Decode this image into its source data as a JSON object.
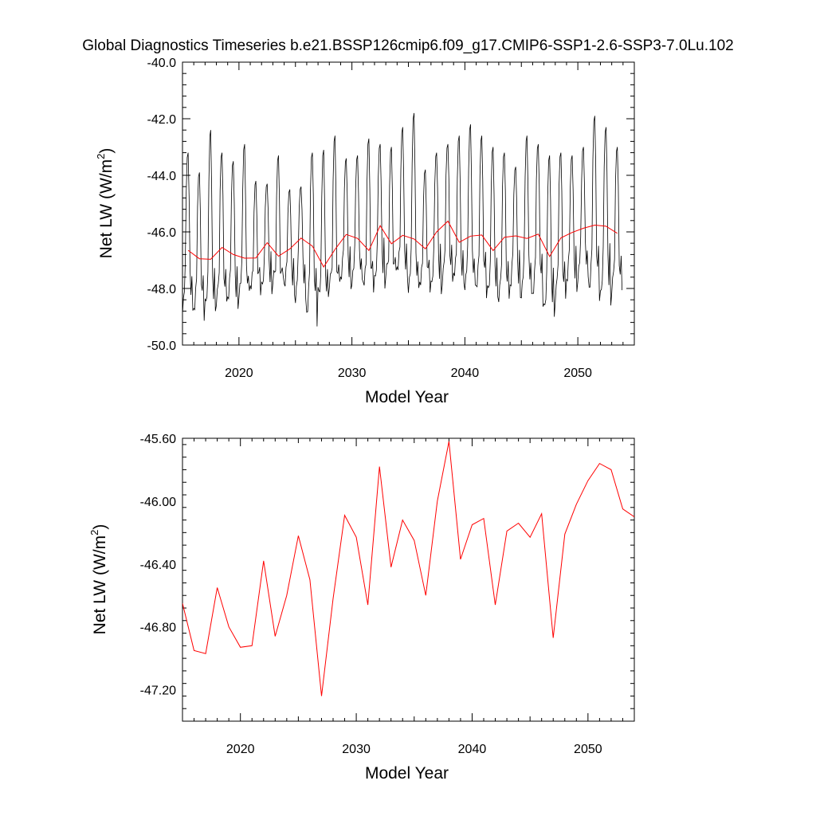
{
  "title": "Global Diagnostics Timeseries b.e21.BSSP126cmip6.f09_g17.CMIP6-SSP1-2.6-SSP3-7.0Lu.102",
  "colors": {
    "monthly": "#000000",
    "annual": "#ff0000"
  },
  "chart_data": [
    {
      "type": "line",
      "xlabel": "Model Year",
      "ylabel": "Net LW (W/m",
      "ylabel_sup": "2",
      "ylabel_close": ")",
      "xlim": [
        2015,
        2055
      ],
      "ylim": [
        -50.0,
        -40.0
      ],
      "xticks": [
        "2020",
        "2030",
        "2040",
        "2050"
      ],
      "xtick_values": [
        2020,
        2030,
        2040,
        2050
      ],
      "yticks": [
        "-50.0",
        "-48.0",
        "-46.0",
        "-44.0",
        "-42.0",
        "-40.0"
      ],
      "ytick_values": [
        -50,
        -48,
        -46,
        -44,
        -42,
        -40
      ],
      "grid": false,
      "monthly_peaks": [
        -43.2,
        -43.9,
        -42.4,
        -43.2,
        -43.5,
        -42.9,
        -44.2,
        -44.3,
        -43.3,
        -44.5,
        -44.4,
        -43.2,
        -43.1,
        -42.6,
        -43.4,
        -43.3,
        -42.7,
        -42.9,
        -43.0,
        -42.3,
        -41.8,
        -43.8,
        -43.2,
        -42.9,
        -42.6,
        -42.2,
        -42.6,
        -43.0,
        -43.2,
        -43.7,
        -42.6,
        -42.9,
        -43.3,
        -43.2,
        -43.3,
        -43.0,
        -41.9,
        -42.3,
        -43.0
      ],
      "monthly_troughs": [
        -48.9,
        -48.9,
        -48.8,
        -48.7,
        -48.6,
        -48.2,
        -48.0,
        -48.2,
        -47.8,
        -48.1,
        -48.5,
        -49.1,
        -48.3,
        -48.0,
        -47.9,
        -47.8,
        -47.9,
        -48.0,
        -47.6,
        -47.5,
        -48.1,
        -47.9,
        -48.2,
        -48.0,
        -47.7,
        -48.0,
        -48.1,
        -48.3,
        -48.6,
        -48.2,
        -48.3,
        -48.4,
        -49.0,
        -48.6,
        -48.0,
        -47.7,
        -48.2,
        -48.6,
        -48.3
      ],
      "series": [
        {
          "kind": "annual",
          "x": [
            2015.5,
            2016.5,
            2017.5,
            2018.5,
            2019.5,
            2020.5,
            2021.5,
            2022.5,
            2023.5,
            2024.5,
            2025.5,
            2026.5,
            2027.5,
            2028.5,
            2029.5,
            2030.5,
            2031.5,
            2032.5,
            2033.5,
            2034.5,
            2035.5,
            2036.5,
            2037.5,
            2038.5,
            2039.5,
            2040.5,
            2041.5,
            2042.5,
            2043.5,
            2044.5,
            2045.5,
            2046.5,
            2047.5,
            2048.5,
            2049.5,
            2050.5,
            2051.5,
            2052.5,
            2053.5
          ],
          "values": [
            -46.65,
            -46.95,
            -46.97,
            -46.55,
            -46.8,
            -46.93,
            -46.92,
            -46.38,
            -46.86,
            -46.6,
            -46.22,
            -46.5,
            -47.24,
            -46.62,
            -46.09,
            -46.23,
            -46.66,
            -45.78,
            -46.42,
            -46.12,
            -46.25,
            -46.6,
            -46.0,
            -45.62,
            -46.37,
            -46.15,
            -46.11,
            -46.66,
            -46.19,
            -46.14,
            -46.23,
            -46.08,
            -46.87,
            -46.21,
            -46.02,
            -45.87,
            -45.76,
            -45.8,
            -46.05
          ]
        }
      ]
    },
    {
      "type": "line",
      "xlabel": "Model Year",
      "ylabel": "Net LW (W/m",
      "ylabel_sup": "2",
      "ylabel_close": ")",
      "xlim": [
        2015,
        2054
      ],
      "ylim": [
        -47.4,
        -45.6
      ],
      "xticks": [
        "2020",
        "2030",
        "2040",
        "2050"
      ],
      "xtick_values": [
        2020,
        2030,
        2040,
        2050
      ],
      "yticks": [
        "-47.20",
        "-46.80",
        "-46.40",
        "-46.00",
        "-45.60"
      ],
      "ytick_values": [
        -47.2,
        -46.8,
        -46.4,
        -46.0,
        -45.6
      ],
      "grid": false,
      "series": [
        {
          "kind": "annual",
          "x": [
            2015,
            2016,
            2017,
            2018,
            2019,
            2020,
            2021,
            2022,
            2023,
            2024,
            2025,
            2026,
            2027,
            2028,
            2029,
            2030,
            2031,
            2032,
            2033,
            2034,
            2035,
            2036,
            2037,
            2038,
            2039,
            2040,
            2041,
            2042,
            2043,
            2044,
            2045,
            2046,
            2047,
            2048,
            2049,
            2050,
            2051,
            2052,
            2053,
            2054
          ],
          "values": [
            -46.65,
            -46.95,
            -46.97,
            -46.55,
            -46.8,
            -46.93,
            -46.92,
            -46.38,
            -46.86,
            -46.6,
            -46.22,
            -46.5,
            -47.24,
            -46.62,
            -46.09,
            -46.23,
            -46.66,
            -45.78,
            -46.42,
            -46.12,
            -46.25,
            -46.6,
            -46.0,
            -45.62,
            -46.37,
            -46.15,
            -46.11,
            -46.66,
            -46.19,
            -46.14,
            -46.23,
            -46.08,
            -46.87,
            -46.21,
            -46.02,
            -45.87,
            -45.76,
            -45.8,
            -46.05,
            -46.1
          ]
        }
      ]
    }
  ]
}
